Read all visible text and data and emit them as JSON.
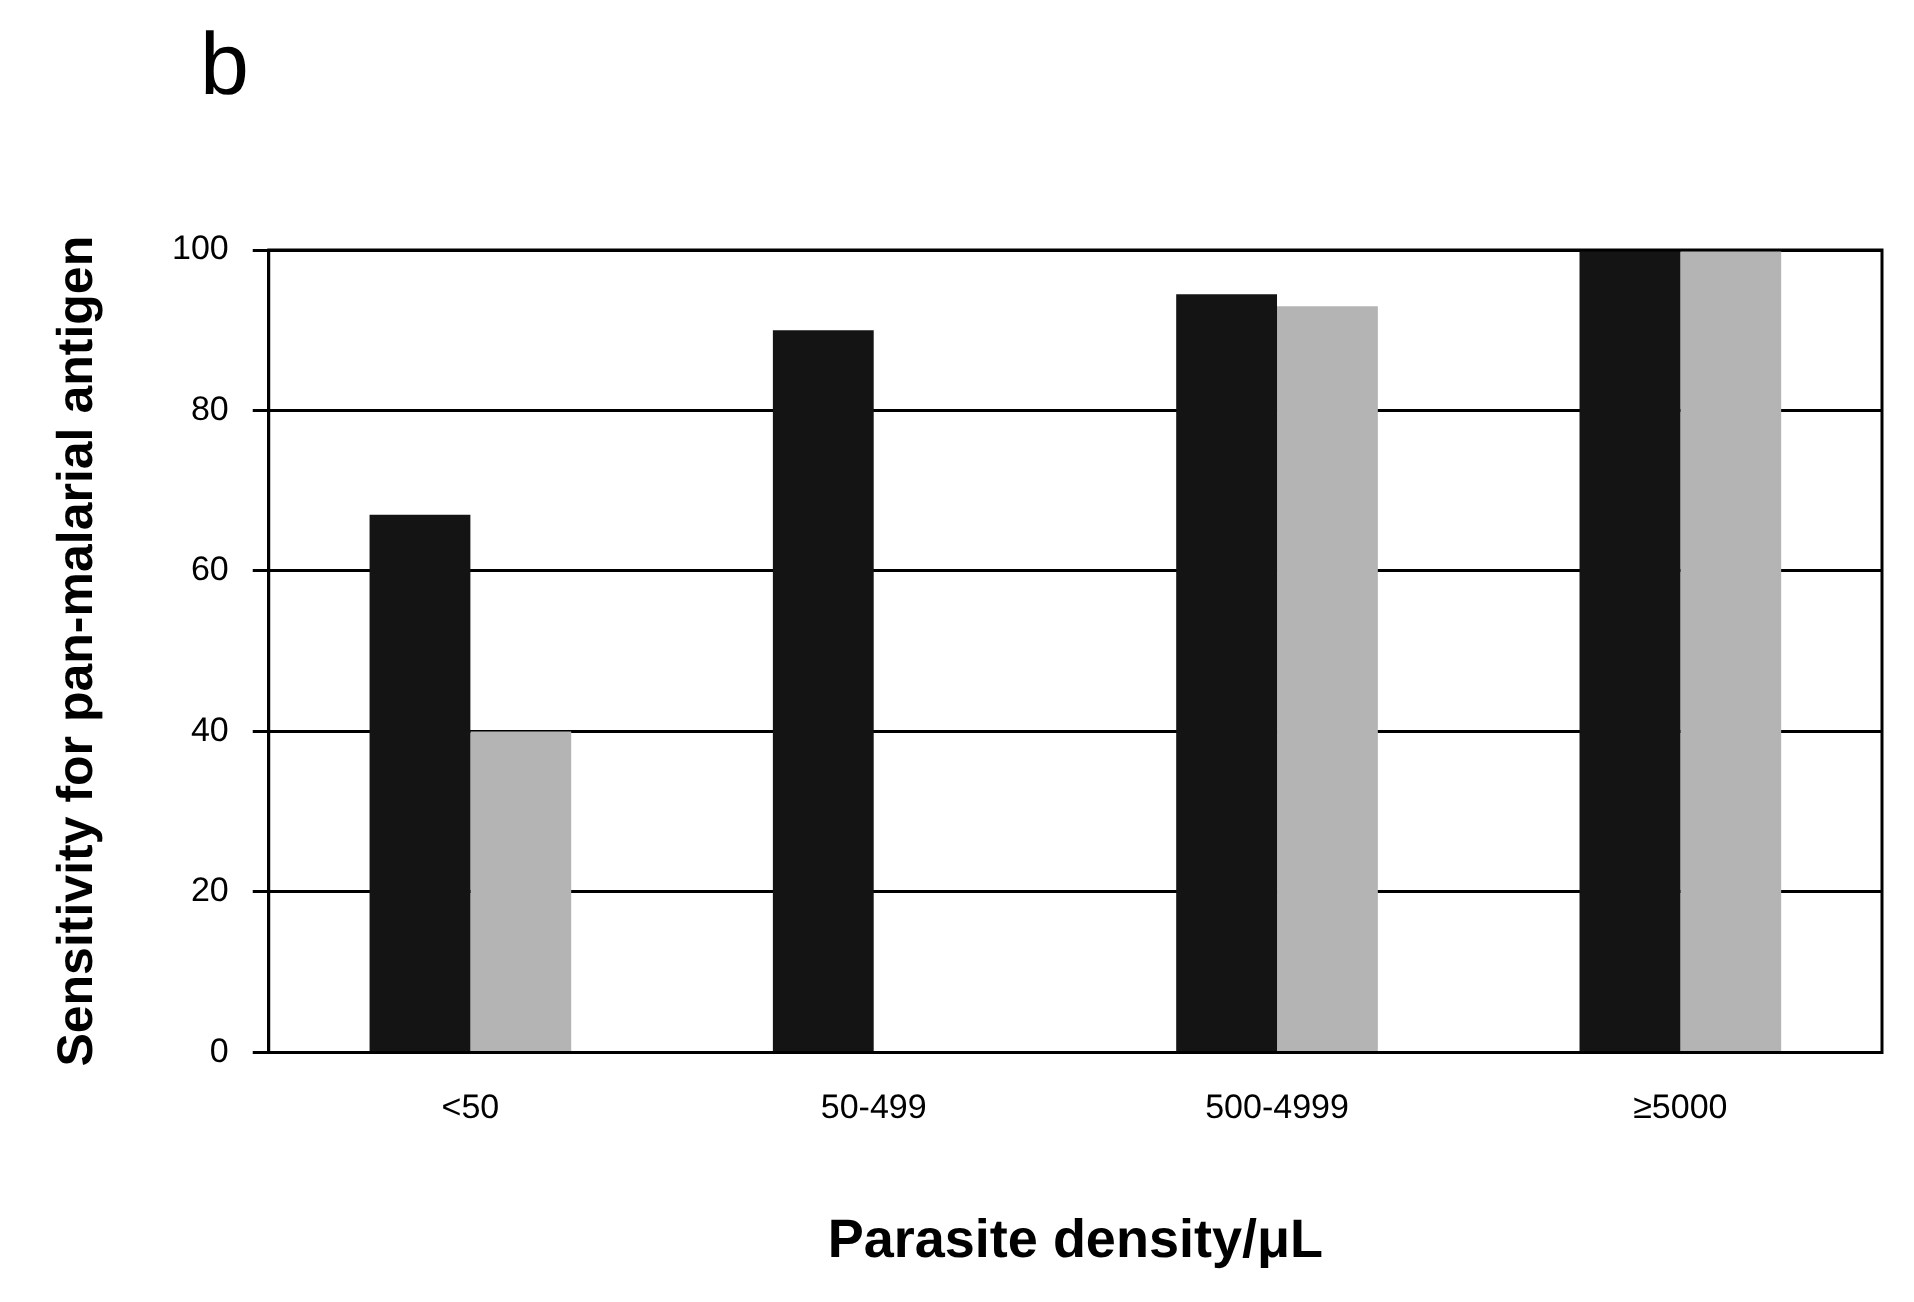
{
  "chart_data": {
    "type": "bar",
    "xlabel": "Parasite density/μL",
    "ylabel": "Sensitivity for pan-malarial antigen",
    "annotations": [
      "b"
    ],
    "categories": [
      "<50",
      "50-499",
      "500-4999",
      "≥5000"
    ],
    "series": [
      {
        "color": "#141414",
        "values": [
          67,
          90,
          94.5,
          100
        ]
      },
      {
        "color": "#b4b4b4",
        "values": [
          40,
          0,
          93,
          100
        ]
      }
    ],
    "ylim": [
      0,
      100
    ],
    "yticks": [
      0,
      20,
      40,
      60,
      80,
      100
    ],
    "grid": "y",
    "legend": false
  }
}
